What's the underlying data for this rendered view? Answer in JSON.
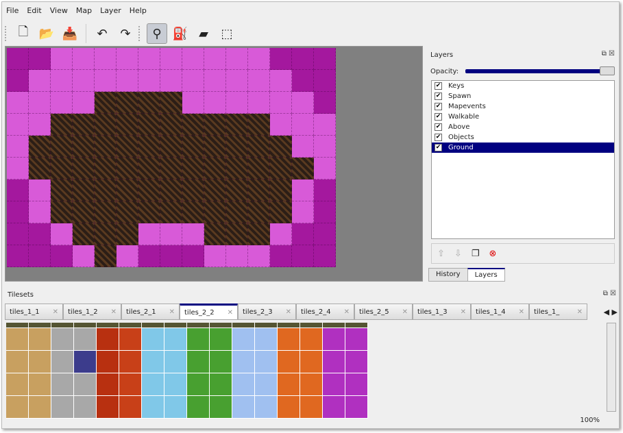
{
  "menu": [
    "File",
    "Edit",
    "View",
    "Map",
    "Layer",
    "Help"
  ],
  "toolbar": [
    {
      "name": "new-icon",
      "glyph": "🗋"
    },
    {
      "name": "open-icon",
      "glyph": "📂"
    },
    {
      "name": "save-icon",
      "glyph": "📥"
    },
    {
      "name": "undo-icon",
      "glyph": "↶"
    },
    {
      "name": "redo-icon",
      "glyph": "↷"
    },
    {
      "name": "stamp-brush-icon",
      "glyph": "⚲"
    },
    {
      "name": "bucket-fill-icon",
      "glyph": "⛽"
    },
    {
      "name": "eraser-icon",
      "glyph": "▰"
    },
    {
      "name": "rect-select-icon",
      "glyph": "⬚"
    }
  ],
  "map_rows": [
    "PPLLLLLLLLLLPPP",
    "PLLLLLLLLLLLLPP",
    "LLLLDDDDLLLLLLP",
    "LLDDDDDDDDDDLLL",
    "LDDDDDDDDDDDDLL",
    "LDDDDDDDDDDDDDL",
    "PLDDDDDDDDDDDLP",
    "PLDDDDDDDDDDDLP",
    "PPLDDDLLLDDDLPP",
    "PPPLDLPPPLLLPPP"
  ],
  "layers": {
    "title": "Layers",
    "opacity_label": "Opacity:",
    "opacity": 1.0,
    "items": [
      {
        "name": "Keys",
        "visible": true
      },
      {
        "name": "Spawn",
        "visible": true
      },
      {
        "name": "Mapevents",
        "visible": true
      },
      {
        "name": "Walkable",
        "visible": true
      },
      {
        "name": "Above",
        "visible": true
      },
      {
        "name": "Objects",
        "visible": true
      },
      {
        "name": "Ground",
        "visible": true,
        "selected": true
      }
    ],
    "tabs": [
      "History",
      "Layers"
    ],
    "active_tab": "Layers"
  },
  "tilesets": {
    "title": "Tilesets",
    "tabs": [
      "tiles_1_1",
      "tiles_1_2",
      "tiles_2_1",
      "tiles_2_2",
      "tiles_2_3",
      "tiles_2_4",
      "tiles_2_5",
      "tiles_1_3",
      "tiles_1_4",
      "tiles_1_"
    ],
    "active": "tiles_2_2",
    "column_colors": [
      "#c8a060",
      "#c8a060",
      "#a8a8a8",
      "#a8a8a8",
      "#b83010",
      "#c84018",
      "#80c8e8",
      "#80c8e8",
      "#48a030",
      "#48a030",
      "#a0c0f0",
      "#a0c0f0",
      "#e06820",
      "#e06820",
      "#b030c0",
      "#b030c0"
    ]
  },
  "status": {
    "zoom": "100%"
  }
}
